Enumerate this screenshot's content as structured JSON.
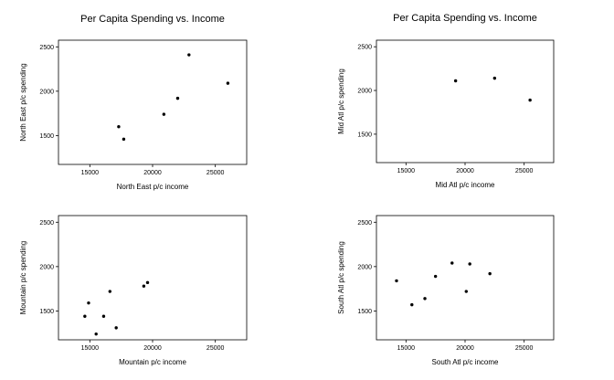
{
  "chart_data": [
    {
      "type": "scatter",
      "title": "Per Capita Spending vs. Income",
      "xlabel": "North East p/c income",
      "ylabel": "North East p/c spending",
      "xlim": [
        12500,
        27500
      ],
      "ylim": [
        1175,
        2575
      ],
      "xticks": [
        15000,
        20000,
        25000
      ],
      "yticks": [
        1500,
        2000,
        2500
      ],
      "grid": false,
      "points": [
        {
          "x": 17300,
          "y": 1600
        },
        {
          "x": 17700,
          "y": 1460
        },
        {
          "x": 20900,
          "y": 1740
        },
        {
          "x": 22000,
          "y": 1920
        },
        {
          "x": 22900,
          "y": 2410
        },
        {
          "x": 26000,
          "y": 2090
        }
      ]
    },
    {
      "type": "scatter",
      "title": "Per Capita Spending vs. Income",
      "xlabel": "Mid Atl p/c income",
      "ylabel": "Mid Atl p/c spending",
      "xlim": [
        12500,
        27500
      ],
      "ylim": [
        1175,
        2575
      ],
      "xticks": [
        15000,
        20000,
        25000
      ],
      "yticks": [
        1500,
        2000,
        2500
      ],
      "grid": false,
      "points": [
        {
          "x": 19200,
          "y": 2110
        },
        {
          "x": 22500,
          "y": 2140
        },
        {
          "x": 25500,
          "y": 1890
        }
      ]
    },
    {
      "type": "scatter",
      "title": "",
      "xlabel": "Mountain p/c income",
      "ylabel": "Mountain p/c spending",
      "xlim": [
        12500,
        27500
      ],
      "ylim": [
        1175,
        2575
      ],
      "xticks": [
        15000,
        20000,
        25000
      ],
      "yticks": [
        1500,
        2000,
        2500
      ],
      "grid": false,
      "points": [
        {
          "x": 14600,
          "y": 1440
        },
        {
          "x": 14900,
          "y": 1590
        },
        {
          "x": 15500,
          "y": 1240
        },
        {
          "x": 16100,
          "y": 1440
        },
        {
          "x": 16600,
          "y": 1720
        },
        {
          "x": 17100,
          "y": 1310
        },
        {
          "x": 19300,
          "y": 1780
        },
        {
          "x": 19600,
          "y": 1820
        }
      ]
    },
    {
      "type": "scatter",
      "title": "",
      "xlabel": "South Atl p/c income",
      "ylabel": "South Atl p/c spending",
      "xlim": [
        12500,
        27500
      ],
      "ylim": [
        1175,
        2575
      ],
      "xticks": [
        15000,
        20000,
        25000
      ],
      "yticks": [
        1500,
        2000,
        2500
      ],
      "grid": false,
      "points": [
        {
          "x": 14200,
          "y": 1840
        },
        {
          "x": 15500,
          "y": 1570
        },
        {
          "x": 16600,
          "y": 1640
        },
        {
          "x": 17500,
          "y": 1890
        },
        {
          "x": 18900,
          "y": 2040
        },
        {
          "x": 20100,
          "y": 1720
        },
        {
          "x": 20400,
          "y": 2030
        },
        {
          "x": 22100,
          "y": 1920
        }
      ]
    }
  ]
}
